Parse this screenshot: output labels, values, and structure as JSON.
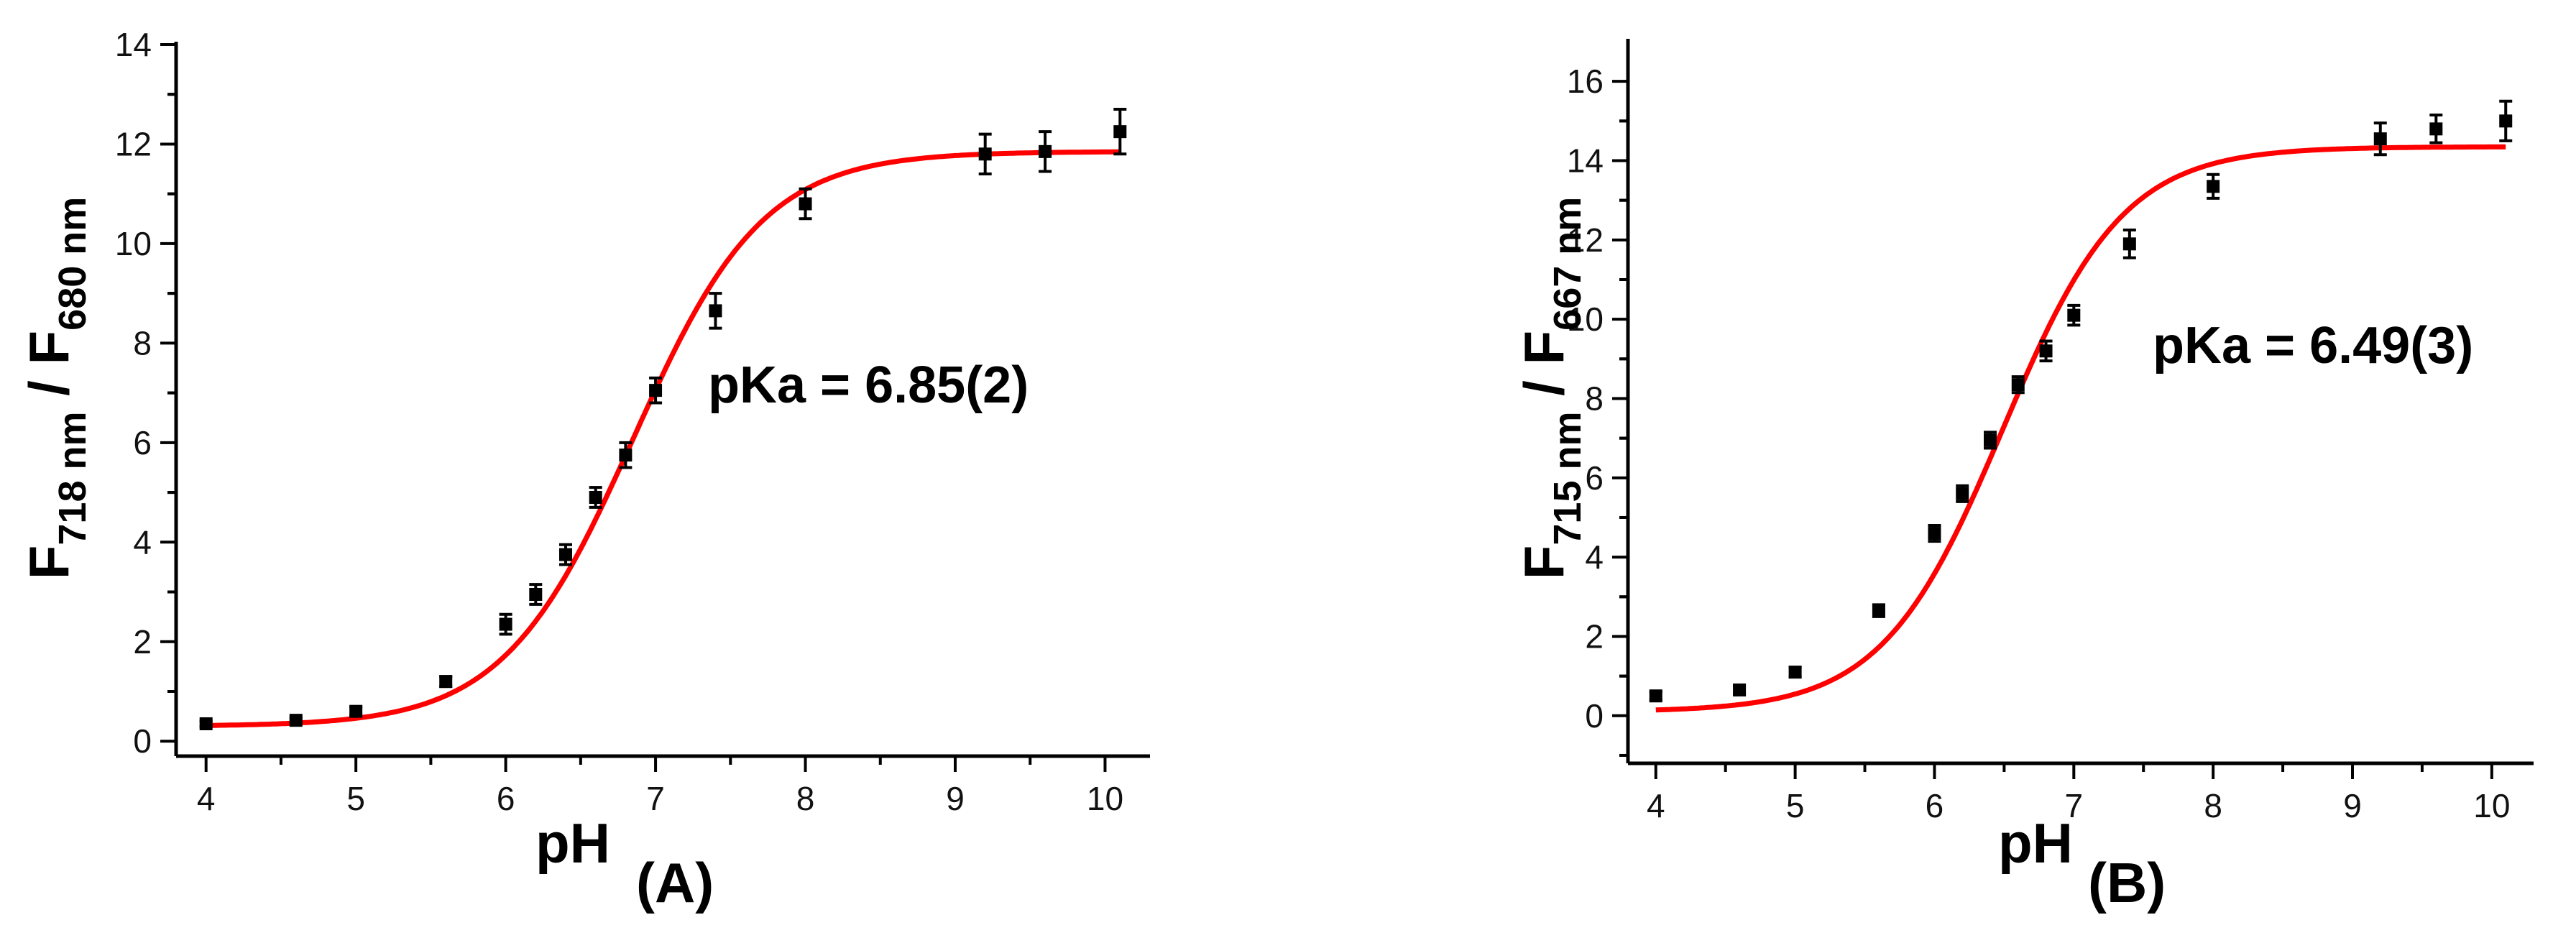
{
  "chart_data": [
    {
      "type": "scatter",
      "panel_label": "(A)",
      "xlabel": "pH",
      "ylabel": {
        "main": "F",
        "sub1": "718 nm",
        "sep": " / F",
        "sub2": "680 nm"
      },
      "annotation": "pKa = 6.85(2)",
      "xlim": [
        3.8,
        10.3
      ],
      "ylim": [
        -0.3,
        14
      ],
      "xticks": [
        4,
        5,
        6,
        7,
        8,
        9,
        10
      ],
      "yticks": [
        0,
        2,
        4,
        6,
        8,
        10,
        12,
        14
      ],
      "grid": false,
      "fit": {
        "model": "sigmoid",
        "bottom": 0.3,
        "top": 11.85,
        "pKa": 6.85,
        "slope": 1.0,
        "color": "#ff0000"
      },
      "series": [
        {
          "marker_color": "#000000",
          "x": [
            4.0,
            4.6,
            5.0,
            5.6,
            6.0,
            6.2,
            6.4,
            6.6,
            6.8,
            7.0,
            7.4,
            8.0,
            9.2,
            9.6,
            10.1
          ],
          "y": [
            0.35,
            0.42,
            0.6,
            1.2,
            2.35,
            2.95,
            3.75,
            4.9,
            5.75,
            7.05,
            8.65,
            10.8,
            11.8,
            11.85,
            12.25
          ],
          "err": [
            0.05,
            0.05,
            0.08,
            0.1,
            0.2,
            0.2,
            0.2,
            0.2,
            0.25,
            0.25,
            0.35,
            0.3,
            0.4,
            0.4,
            0.45
          ]
        }
      ]
    },
    {
      "type": "scatter",
      "panel_label": "(B)",
      "xlabel": "pH",
      "ylabel": {
        "main": "F",
        "sub1": "715 nm",
        "sep": " / F",
        "sub2": "667 nm"
      },
      "annotation": "pKa = 6.49(3)",
      "xlim": [
        3.8,
        10.3
      ],
      "ylim": [
        -1.2,
        17
      ],
      "xticks": [
        4,
        5,
        6,
        7,
        8,
        9,
        10
      ],
      "yticks": [
        0,
        2,
        4,
        6,
        8,
        10,
        12,
        14,
        16
      ],
      "grid": false,
      "fit": {
        "model": "sigmoid",
        "bottom": 0.1,
        "top": 14.35,
        "pKa": 6.49,
        "slope": 1.0,
        "color": "#ff0000"
      },
      "series": [
        {
          "marker_color": "#000000",
          "x": [
            4.0,
            4.6,
            5.0,
            5.6,
            6.0,
            6.2,
            6.4,
            6.6,
            6.8,
            7.0,
            7.4,
            8.0,
            9.2,
            9.6,
            10.1
          ],
          "y": [
            0.5,
            0.65,
            1.1,
            2.65,
            4.6,
            5.6,
            6.95,
            8.35,
            9.2,
            10.1,
            11.9,
            13.35,
            14.55,
            14.8,
            15.0
          ],
          "err": [
            0.1,
            0.1,
            0.12,
            0.15,
            0.2,
            0.2,
            0.2,
            0.2,
            0.25,
            0.25,
            0.35,
            0.3,
            0.4,
            0.35,
            0.5
          ]
        }
      ]
    }
  ]
}
